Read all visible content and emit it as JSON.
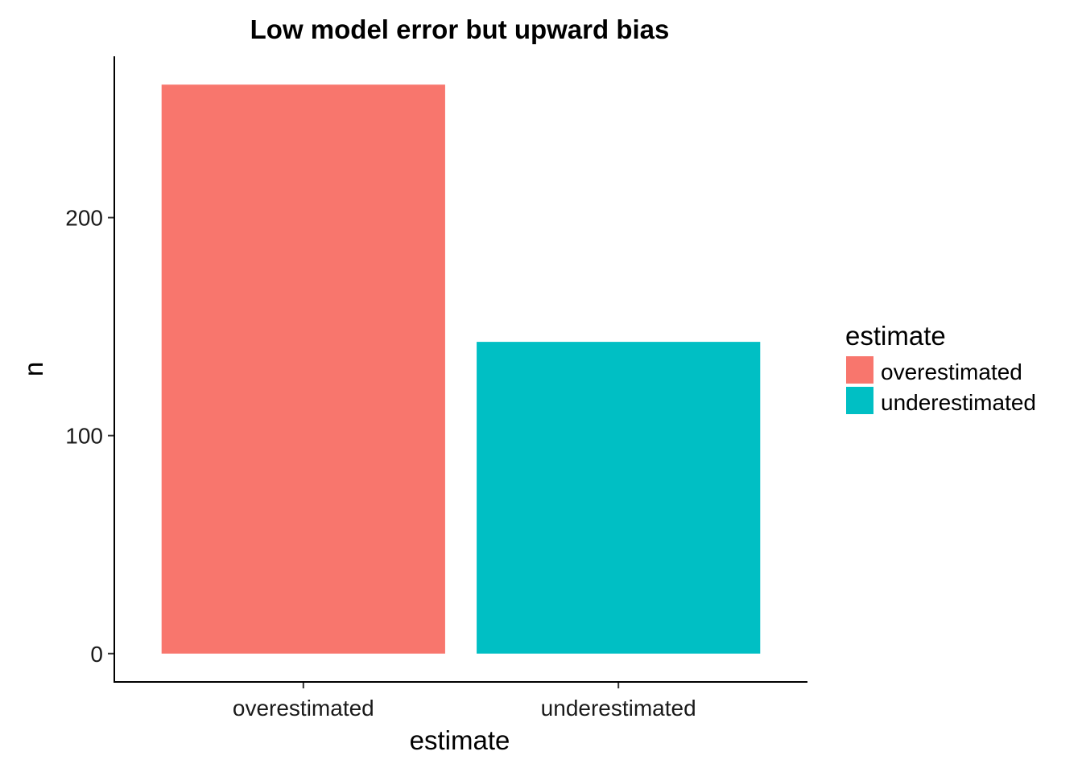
{
  "chart_data": {
    "type": "bar",
    "title": "Low model error but upward bias",
    "xlabel": "estimate",
    "ylabel": "n",
    "categories": [
      "overestimated",
      "underestimated"
    ],
    "values": [
      261,
      143
    ],
    "colors": [
      "#F8766D",
      "#00BFC4"
    ],
    "ylim": [
      -13,
      274
    ],
    "yticks": [
      0,
      100,
      200
    ],
    "grid": false,
    "legend": {
      "title": "estimate",
      "position": "right",
      "items": [
        {
          "label": "overestimated",
          "color": "#F8766D"
        },
        {
          "label": "underestimated",
          "color": "#00BFC4"
        }
      ]
    }
  }
}
